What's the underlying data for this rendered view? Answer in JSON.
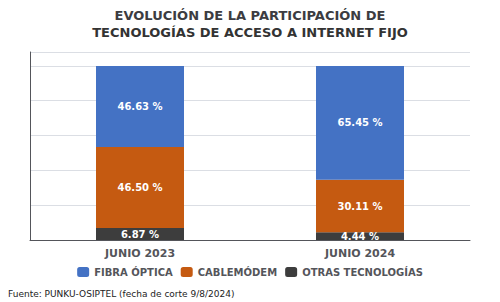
{
  "chart_data": {
    "type": "bar",
    "title": "EVOLUCIÓN DE LA PARTICIPACIÓN DE",
    "subtitle": "TECNOLOGÍAS DE ACCESO A INTERNET FIJO",
    "categories": [
      "JUNIO 2023",
      "JUNIO 2024"
    ],
    "series": [
      {
        "name": "OTRAS TECNOLOGÍAS",
        "color": "#3D3D3D",
        "values": [
          6.87,
          4.44
        ],
        "value_labels": [
          "6.87 %",
          "4.44 %"
        ]
      },
      {
        "name": "CABLEMÓDEM",
        "color": "#C55A11",
        "values": [
          46.5,
          30.11
        ],
        "value_labels": [
          "46.50 %",
          "30.11 %"
        ]
      },
      {
        "name": "FIBRA ÓPTICA",
        "color": "#4472C4",
        "values": [
          46.63,
          65.45
        ],
        "value_labels": [
          "46.63 %",
          "65.45 %"
        ]
      }
    ],
    "stacked": true,
    "data_labels": true,
    "ylim": [
      0,
      108
    ],
    "yticks": [
      0,
      20,
      40,
      60,
      80,
      100
    ],
    "grid": true,
    "tick_labels": "x",
    "legend": "bottom",
    "annotations": [
      "Fuente: PUNKU-OSIPTEL (fecha de corte 9/8/2024)"
    ]
  }
}
